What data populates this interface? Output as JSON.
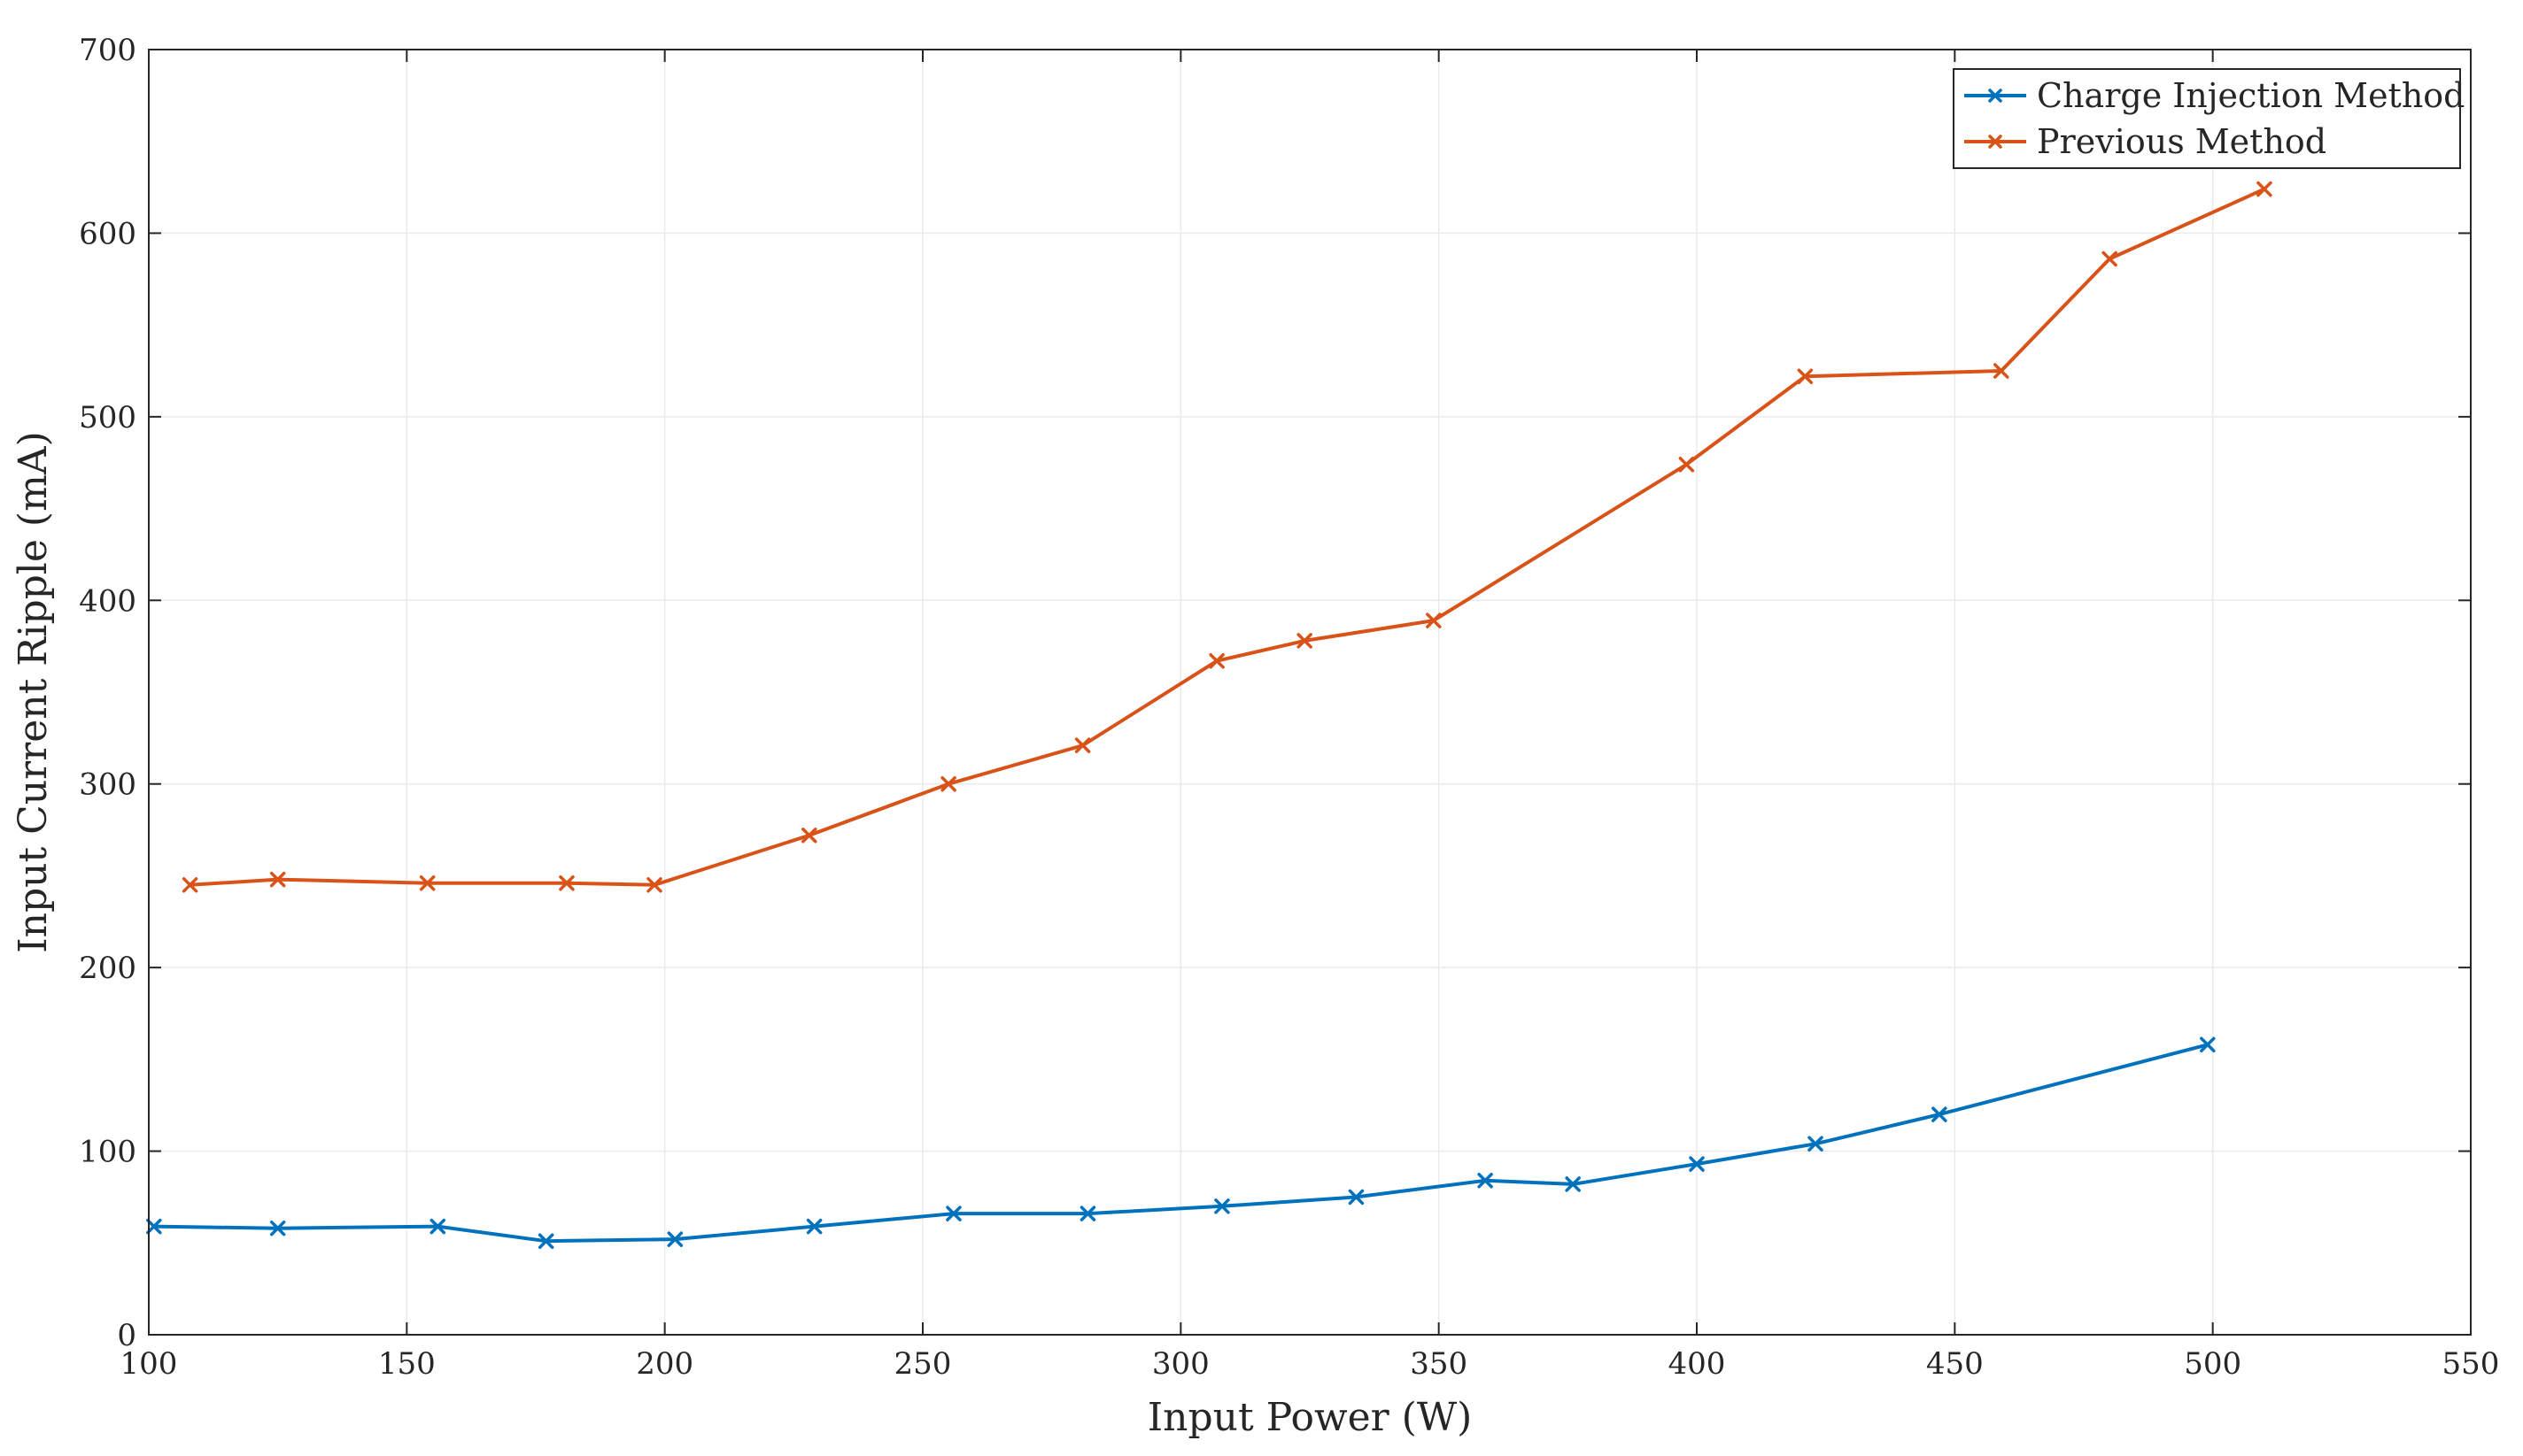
{
  "chart_data": {
    "type": "line",
    "title": "",
    "xlabel": "Input Power (W)",
    "ylabel": "Input Current Ripple (mA)",
    "xlim": [
      100,
      550
    ],
    "ylim": [
      0,
      700
    ],
    "xticks": [
      100,
      150,
      200,
      250,
      300,
      350,
      400,
      450,
      500,
      550
    ],
    "yticks": [
      0,
      100,
      200,
      300,
      400,
      500,
      600,
      700
    ],
    "grid": true,
    "legend_position": "top-right",
    "marker": "x",
    "series": [
      {
        "name": "Charge Injection Method",
        "color": "#0072BD",
        "x": [
          101,
          125,
          156,
          177,
          202,
          229,
          256,
          282,
          308,
          334,
          359,
          376,
          400,
          423,
          447,
          499
        ],
        "y": [
          59,
          58,
          59,
          51,
          52,
          59,
          66,
          66,
          70,
          75,
          84,
          82,
          93,
          104,
          120,
          158
        ]
      },
      {
        "name": "Previous Method",
        "color": "#D95319",
        "x": [
          108,
          125,
          154,
          181,
          198,
          228,
          255,
          281,
          307,
          324,
          349,
          398,
          421,
          459,
          480,
          510
        ],
        "y": [
          245,
          248,
          246,
          246,
          245,
          272,
          300,
          321,
          367,
          378,
          389,
          474,
          522,
          525,
          586,
          624
        ]
      }
    ]
  }
}
